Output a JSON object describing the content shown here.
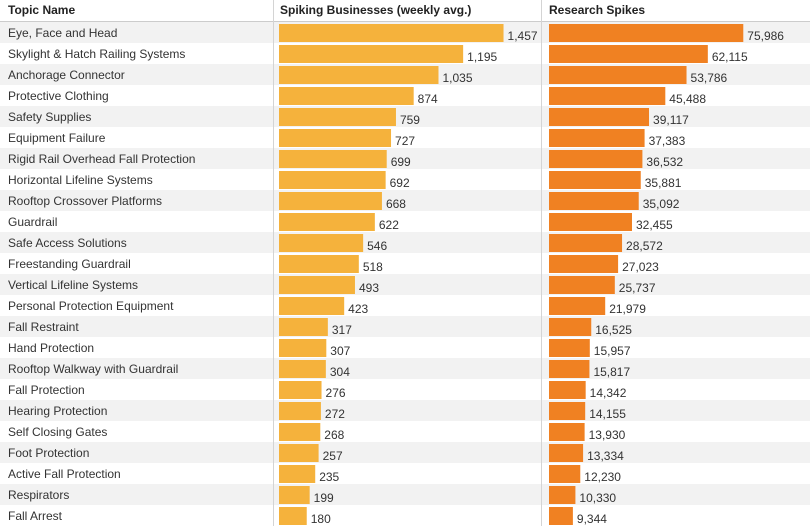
{
  "chart_data": {
    "type": "bar",
    "orientation": "horizontal",
    "columns": {
      "topic": "Topic Name",
      "businesses": "Spiking Businesses (weekly avg.)",
      "research": "Research Spikes"
    },
    "categories": [
      "Eye, Face and Head",
      "Skylight & Hatch Railing Systems",
      "Anchorage Connector",
      "Protective Clothing",
      "Safety Supplies",
      "Equipment Failure",
      "Rigid Rail Overhead Fall Protection",
      "Horizontal Lifeline Systems",
      "Rooftop Crossover Platforms",
      "Guardrail",
      "Safe Access Solutions",
      "Freestanding Guardrail",
      "Vertical Lifeline Systems",
      "Personal Protection Equipment",
      "Fall Restraint",
      "Hand Protection",
      "Rooftop Walkway with Guardrail",
      "Fall Protection",
      "Hearing Protection",
      "Self Closing Gates",
      "Foot Protection",
      "Active Fall Protection",
      "Respirators",
      "Fall Arrest"
    ],
    "series": [
      {
        "name": "Spiking Businesses (weekly avg.)",
        "color": "#f5b23c",
        "values": [
          1457,
          1195,
          1035,
          874,
          759,
          727,
          699,
          692,
          668,
          622,
          546,
          518,
          493,
          423,
          317,
          307,
          304,
          276,
          272,
          268,
          257,
          235,
          199,
          180
        ],
        "labels": [
          "1,457",
          "1,195",
          "1,035",
          "874",
          "759",
          "727",
          "699",
          "692",
          "668",
          "622",
          "546",
          "518",
          "493",
          "423",
          "317",
          "307",
          "304",
          "276",
          "272",
          "268",
          "257",
          "235",
          "199",
          "180"
        ]
      },
      {
        "name": "Research Spikes",
        "color": "#f08122",
        "values": [
          75986,
          62115,
          53786,
          45488,
          39117,
          37383,
          36532,
          35881,
          35092,
          32455,
          28572,
          27023,
          25737,
          21979,
          16525,
          15957,
          15817,
          14342,
          14155,
          13930,
          13334,
          12230,
          10330,
          9344
        ],
        "labels": [
          "75,986",
          "62,115",
          "53,786",
          "45,488",
          "39,117",
          "37,383",
          "36,532",
          "35,881",
          "35,092",
          "32,455",
          "28,572",
          "27,023",
          "25,737",
          "21,979",
          "16,525",
          "15,957",
          "15,817",
          "14,342",
          "14,155",
          "13,930",
          "13,334",
          "12,230",
          "10,330",
          "9,344"
        ]
      }
    ],
    "row_stripe_color": "#f2f2f2"
  }
}
